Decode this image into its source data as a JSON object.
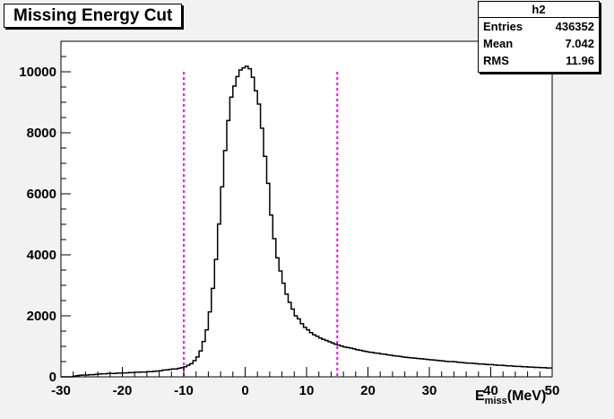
{
  "chart_data": {
    "type": "histogram",
    "title": "Missing Energy Cut",
    "xlabel": {
      "main": "E",
      "sub": "miss",
      "unit": "(MeV)"
    },
    "ylabel": "",
    "xlim": [
      -30,
      50
    ],
    "ylim": [
      0,
      11000
    ],
    "x_ticks": [
      "-30",
      "-20",
      "-10",
      "0",
      "10",
      "20",
      "30",
      "40",
      "50"
    ],
    "y_ticks": [
      "0",
      "2000",
      "4000",
      "6000",
      "8000",
      "10000"
    ],
    "x_tick_values": [
      -30,
      -20,
      -10,
      0,
      10,
      20,
      30,
      40,
      50
    ],
    "y_tick_values": [
      0,
      2000,
      4000,
      6000,
      8000,
      10000
    ],
    "grid": false,
    "cut_lines": [
      -10,
      15
    ],
    "stats": {
      "name": "h2",
      "rows": [
        {
          "label": "Entries",
          "value": "436352"
        },
        {
          "label": "Mean",
          "value": "7.042"
        },
        {
          "label": "RMS",
          "value": "11.96"
        }
      ]
    },
    "series": [
      {
        "bin_width": 0.5,
        "centers": [
          -29.75,
          -29.25,
          -28.75,
          -28.25,
          -27.75,
          -27.25,
          -26.75,
          -26.25,
          -25.75,
          -25.25,
          -24.75,
          -24.25,
          -23.75,
          -23.25,
          -22.75,
          -22.25,
          -21.75,
          -21.25,
          -20.75,
          -20.25,
          -19.75,
          -19.25,
          -18.75,
          -18.25,
          -17.75,
          -17.25,
          -16.75,
          -16.25,
          -15.75,
          -15.25,
          -14.75,
          -14.25,
          -13.75,
          -13.25,
          -12.75,
          -12.25,
          -11.75,
          -11.25,
          -10.75,
          -10.25,
          -9.75,
          -9.25,
          -8.75,
          -8.25,
          -7.75,
          -7.25,
          -6.75,
          -6.25,
          -5.75,
          -5.25,
          -4.75,
          -4.25,
          -3.75,
          -3.25,
          -2.75,
          -2.25,
          -1.75,
          -1.25,
          -0.75,
          -0.25,
          0.25,
          0.75,
          1.25,
          1.75,
          2.25,
          2.75,
          3.25,
          3.75,
          4.25,
          4.75,
          5.25,
          5.75,
          6.25,
          6.75,
          7.25,
          7.75,
          8.25,
          8.75,
          9.25,
          9.75,
          10.25,
          10.75,
          11.25,
          11.75,
          12.25,
          12.75,
          13.25,
          13.75,
          14.25,
          14.75,
          15.25,
          15.75,
          16.25,
          16.75,
          17.25,
          17.75,
          18.25,
          18.75,
          19.25,
          19.75,
          20.25,
          20.75,
          21.25,
          21.75,
          22.25,
          22.75,
          23.25,
          23.75,
          24.25,
          24.75,
          25.25,
          25.75,
          26.25,
          26.75,
          27.25,
          27.75,
          28.25,
          28.75,
          29.25,
          29.75,
          30.25,
          30.75,
          31.25,
          31.75,
          32.25,
          32.75,
          33.25,
          33.75,
          34.25,
          34.75,
          35.25,
          35.75,
          36.25,
          36.75,
          37.25,
          37.75,
          38.25,
          38.75,
          39.25,
          39.75,
          40.25,
          40.75,
          41.25,
          41.75,
          42.25,
          42.75,
          43.25,
          43.75,
          44.25,
          44.75,
          45.25,
          45.75,
          46.25,
          46.75,
          47.25,
          47.75,
          48.25,
          48.75,
          49.25,
          49.75
        ],
        "values": [
          0,
          0,
          0,
          0,
          20,
          40,
          50,
          60,
          60,
          70,
          70,
          80,
          90,
          100,
          100,
          110,
          110,
          110,
          120,
          120,
          130,
          130,
          140,
          140,
          150,
          150,
          160,
          160,
          170,
          170,
          180,
          190,
          200,
          220,
          230,
          240,
          260,
          260,
          280,
          300,
          330,
          380,
          430,
          530,
          650,
          850,
          1160,
          1540,
          2130,
          2900,
          3850,
          5010,
          6230,
          7420,
          8400,
          9170,
          9530,
          9840,
          10060,
          10130,
          10180,
          10100,
          9820,
          9380,
          8940,
          8150,
          7230,
          6340,
          5300,
          4530,
          3900,
          3470,
          3070,
          2710,
          2440,
          2220,
          2000,
          1900,
          1740,
          1620,
          1540,
          1450,
          1380,
          1330,
          1270,
          1230,
          1190,
          1150,
          1110,
          1070,
          1040,
          1010,
          980,
          960,
          940,
          920,
          890,
          870,
          850,
          830,
          810,
          800,
          780,
          770,
          750,
          740,
          720,
          710,
          690,
          680,
          670,
          650,
          640,
          630,
          620,
          610,
          600,
          590,
          580,
          570,
          560,
          550,
          540,
          530,
          520,
          510,
          500,
          500,
          490,
          480,
          470,
          460,
          450,
          450,
          440,
          430,
          420,
          420,
          410,
          400,
          400,
          390,
          380,
          380,
          370,
          360,
          360,
          350,
          340,
          340,
          330,
          330,
          320,
          320,
          310,
          310,
          300,
          300,
          290,
          290,
          280,
          270
        ]
      }
    ]
  }
}
